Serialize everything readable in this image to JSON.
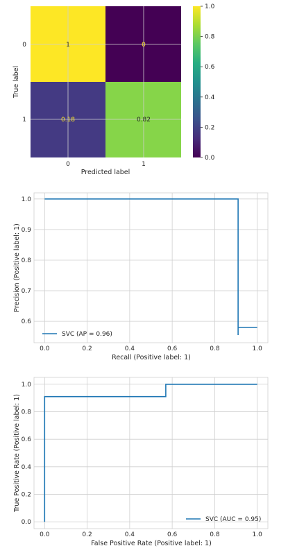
{
  "charts": {
    "confusion": {
      "type": "heatmap",
      "xlabel": "Predicted label",
      "ylabel": "True label",
      "x_ticks": [
        "0",
        "1"
      ],
      "y_ticks": [
        "0",
        "1"
      ],
      "cells": [
        [
          1,
          0
        ],
        [
          0.18,
          0.82
        ]
      ],
      "cell_labels": [
        [
          "1",
          "0"
        ],
        [
          "0.18",
          "0.82"
        ]
      ],
      "colorbar_ticks": [
        "0.0",
        "0.2",
        "0.4",
        "0.6",
        "0.8",
        "1.0"
      ],
      "colorbar_range": [
        0,
        1
      ],
      "colormap": "viridis"
    },
    "pr": {
      "type": "line",
      "xlabel": "Recall (Positive label: 1)",
      "ylabel": "Precision (Positive label: 1)",
      "x_ticks": [
        "0.0",
        "0.2",
        "0.4",
        "0.6",
        "0.8",
        "1.0"
      ],
      "y_ticks": [
        "0.6",
        "0.7",
        "0.8",
        "0.9",
        "1.0"
      ],
      "xlim": [
        -0.05,
        1.05
      ],
      "ylim": [
        0.53,
        1.02
      ],
      "legend": "SVC (AP = 0.96)",
      "legend_loc": "lower-left",
      "points": [
        [
          0,
          1.0
        ],
        [
          0.91,
          1.0
        ],
        [
          0.91,
          0.555
        ],
        [
          0.91,
          0.58
        ],
        [
          1.0,
          0.58
        ]
      ]
    },
    "roc": {
      "type": "line",
      "xlabel": "False Positive Rate (Positive label: 1)",
      "ylabel": "True Positive Rate (Positive label: 1)",
      "x_ticks": [
        "0.0",
        "0.2",
        "0.4",
        "0.6",
        "0.8",
        "1.0"
      ],
      "y_ticks": [
        "0.0",
        "0.2",
        "0.4",
        "0.6",
        "0.8",
        "1.0"
      ],
      "xlim": [
        -0.05,
        1.05
      ],
      "ylim": [
        -0.05,
        1.05
      ],
      "legend": "SVC (AUC = 0.95)",
      "legend_loc": "lower-right",
      "points": [
        [
          0,
          0
        ],
        [
          0,
          0.91
        ],
        [
          0.57,
          0.91
        ],
        [
          0.57,
          1.0
        ],
        [
          1.0,
          1.0
        ]
      ]
    }
  },
  "chart_data": [
    {
      "type": "heatmap",
      "xlabel": "Predicted label",
      "ylabel": "True label",
      "x_categories": [
        "0",
        "1"
      ],
      "y_categories": [
        "0",
        "1"
      ],
      "values": [
        [
          1,
          0
        ],
        [
          0.18,
          0.82
        ]
      ],
      "colorbar_range": [
        0,
        1
      ],
      "colormap": "viridis"
    },
    {
      "type": "line",
      "xlabel": "Recall (Positive label: 1)",
      "ylabel": "Precision (Positive label: 1)",
      "series": [
        {
          "name": "SVC (AP = 0.96)",
          "x": [
            0,
            0.91,
            0.91,
            0.91,
            1.0
          ],
          "y": [
            1.0,
            1.0,
            0.555,
            0.58,
            0.58
          ]
        }
      ],
      "xlim": [
        -0.05,
        1.05
      ],
      "ylim": [
        0.53,
        1.02
      ],
      "grid": true,
      "legend_loc": "lower-left"
    },
    {
      "type": "line",
      "xlabel": "False Positive Rate (Positive label: 1)",
      "ylabel": "True Positive Rate (Positive label: 1)",
      "series": [
        {
          "name": "SVC (AUC = 0.95)",
          "x": [
            0,
            0,
            0.57,
            0.57,
            1.0
          ],
          "y": [
            0,
            0.91,
            0.91,
            1.0,
            1.0
          ]
        }
      ],
      "xlim": [
        -0.05,
        1.05
      ],
      "ylim": [
        -0.05,
        1.05
      ],
      "grid": true,
      "legend_loc": "lower-right"
    }
  ]
}
